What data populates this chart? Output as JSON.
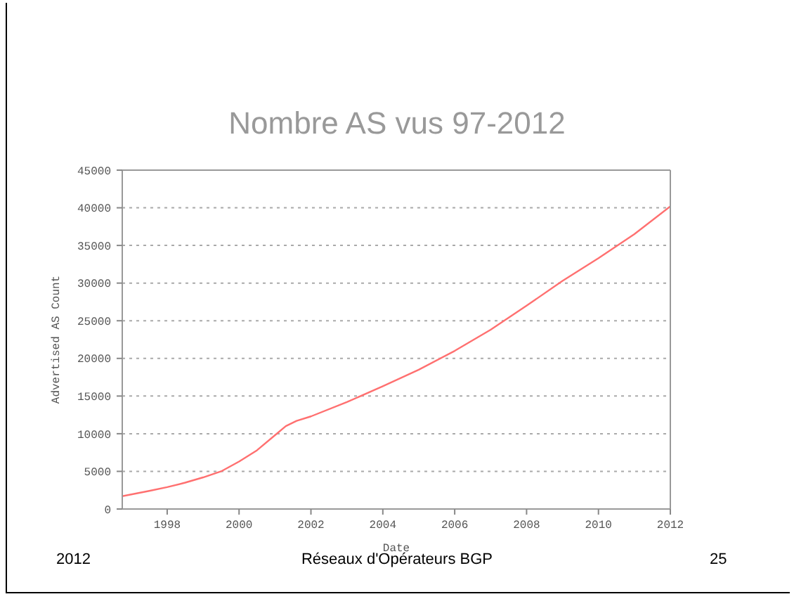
{
  "chart_data": {
    "type": "line",
    "title": "Nombre AS vus 97-2012",
    "xlabel": "Date",
    "ylabel": "Advertised AS Count",
    "x": [
      1996.75,
      1997.5,
      1998,
      1998.5,
      1999,
      1999.5,
      2000,
      2000.5,
      2001,
      2001.3,
      2001.6,
      2002,
      2003,
      2004,
      2005,
      2006,
      2007,
      2008,
      2009,
      2010,
      2011,
      2012
    ],
    "series": [
      {
        "color": "#ff7070",
        "values": [
          1700,
          2400,
          2900,
          3500,
          4200,
          5000,
          6300,
          7800,
          9800,
          11000,
          11700,
          12300,
          14200,
          16300,
          18500,
          21000,
          23800,
          27000,
          30300,
          33300,
          36500,
          40200
        ]
      }
    ],
    "xlim": [
      1996.75,
      2012
    ],
    "xticks": [
      1998,
      2000,
      2002,
      2004,
      2006,
      2008,
      2010,
      2012
    ],
    "ylim": [
      0,
      45000
    ],
    "yticks": [
      0,
      5000,
      10000,
      15000,
      20000,
      25000,
      30000,
      35000,
      40000,
      45000
    ],
    "grid": "y",
    "legend": false,
    "marker": "none",
    "line_style": "solid",
    "annotations": [
      "2012",
      "Réseaux d'Opérateurs BGP",
      "25"
    ]
  }
}
